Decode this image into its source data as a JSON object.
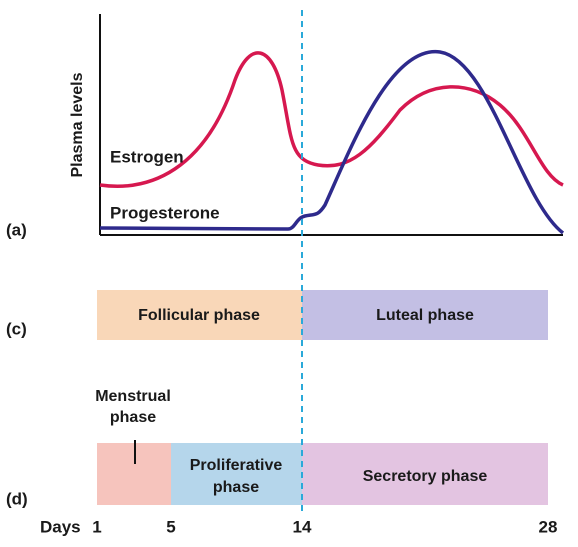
{
  "plot": {
    "y_axis_label": "Plasma levels",
    "curves": [
      {
        "label": "Estrogen"
      },
      {
        "label": "Progesterone"
      }
    ]
  },
  "panel_labels": [
    "(a)",
    "(c)",
    "(d)"
  ],
  "ovarian_phases": [
    "Follicular phase",
    "Luteal phase"
  ],
  "uterine_phases": [
    {
      "lines": [
        "Menstrual",
        "phase"
      ]
    },
    {
      "lines": [
        "Proliferative",
        "phase"
      ]
    },
    {
      "lines": [
        "Secretory phase"
      ]
    }
  ],
  "days": {
    "label": "Days",
    "ticks": [
      "1",
      "5",
      "14",
      "28"
    ]
  }
}
